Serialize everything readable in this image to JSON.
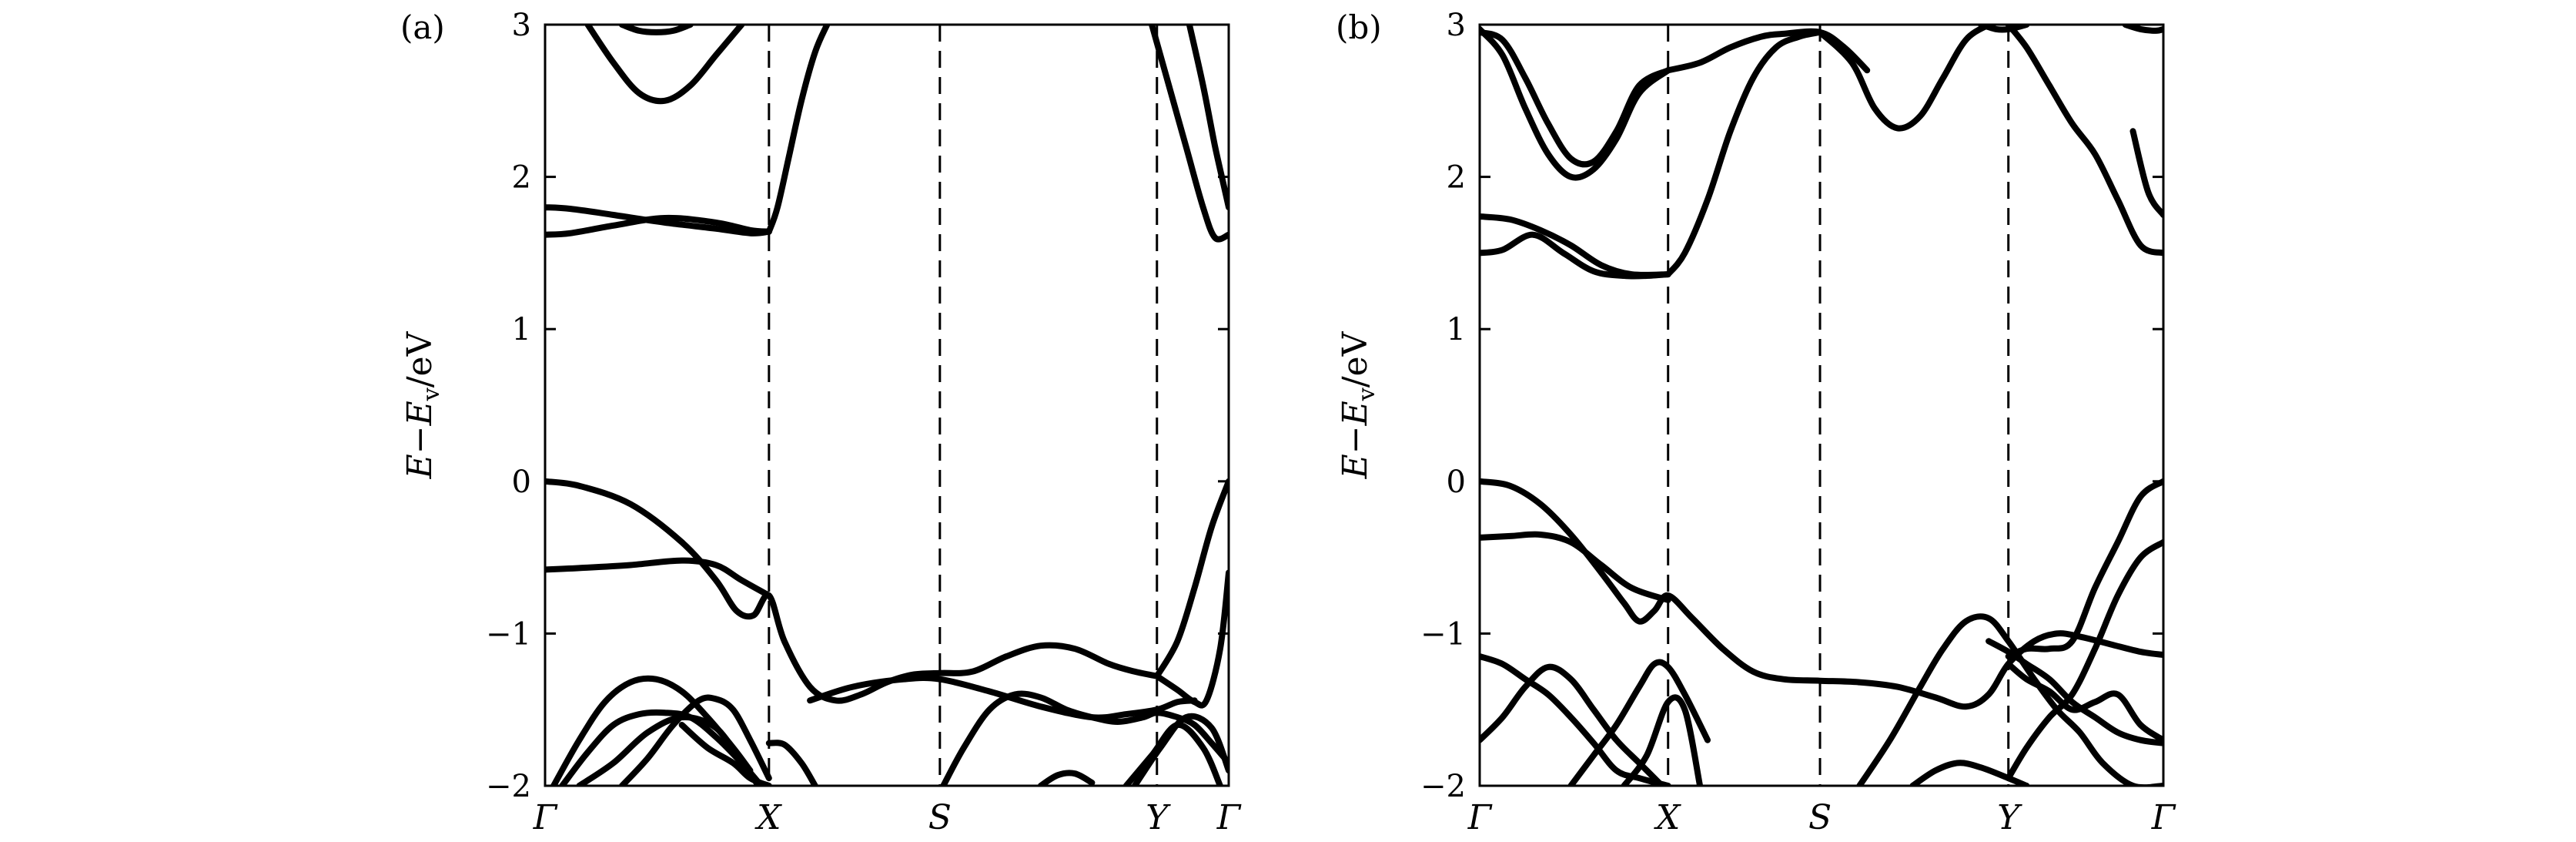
{
  "chart_data": [
    {
      "type": "line",
      "panel_label": "(a)",
      "ylabel": {
        "E": "E",
        "minus": "−",
        "Ev": "E",
        "sub": "v",
        "unit": "/eV"
      },
      "ylim": [
        -2,
        3
      ],
      "yticks": [
        -2,
        -1,
        0,
        1,
        2,
        3
      ],
      "ytick_labels": [
        "−2",
        "−1",
        "0",
        "1",
        "2",
        "3"
      ],
      "xlim": [
        0,
        4
      ],
      "kpoints": [
        {
          "label": "Γ",
          "x": 0
        },
        {
          "label": "X",
          "x": 1.31
        },
        {
          "label": "S",
          "x": 2.31
        },
        {
          "label": "Y",
          "x": 3.58
        },
        {
          "label": "Γ",
          "x": 4
        }
      ],
      "series": [
        {
          "x": [
            0.25,
            0.4,
            0.55,
            0.7,
            0.85,
            1.0,
            1.15
          ],
          "y": [
            3,
            2.75,
            2.55,
            2.5,
            2.6,
            2.8,
            3
          ]
        },
        {
          "x": [
            0.45,
            0.55,
            0.65,
            0.75,
            0.85
          ],
          "y": [
            3,
            2.96,
            2.95,
            2.96,
            3
          ]
        },
        {
          "x": [
            0,
            0.15,
            0.4,
            0.7,
            1.0,
            1.2,
            1.31
          ],
          "y": [
            1.8,
            1.79,
            1.75,
            1.7,
            1.66,
            1.63,
            1.64
          ]
        },
        {
          "x": [
            0,
            0.15,
            0.4,
            0.7,
            1.0,
            1.2,
            1.31
          ],
          "y": [
            1.62,
            1.63,
            1.68,
            1.73,
            1.7,
            1.65,
            1.64
          ]
        },
        {
          "x": [
            1.31,
            1.36,
            1.43,
            1.5,
            1.58,
            1.65
          ],
          "y": [
            1.64,
            1.8,
            2.15,
            2.5,
            2.82,
            3
          ]
        },
        {
          "x": [
            0,
            0.2,
            0.5,
            0.8,
            1.0,
            1.12,
            1.22,
            1.31,
            1.4,
            1.55,
            1.7,
            1.85,
            2.0,
            2.15,
            2.31,
            2.5,
            2.7,
            2.9,
            3.1,
            3.3,
            3.45,
            3.58
          ],
          "y": [
            0,
            -0.03,
            -0.15,
            -0.4,
            -0.65,
            -0.85,
            -0.88,
            -0.75,
            -1.05,
            -1.35,
            -1.44,
            -1.4,
            -1.32,
            -1.27,
            -1.26,
            -1.25,
            -1.15,
            -1.08,
            -1.1,
            -1.2,
            -1.25,
            -1.28
          ]
        },
        {
          "x": [
            3.58,
            3.7,
            3.8,
            3.87,
            3.95,
            4.0
          ],
          "y": [
            -1.28,
            -1.37,
            -1.45,
            -1.44,
            -1.1,
            -0.6
          ]
        },
        {
          "x": [
            0,
            0.2,
            0.5,
            0.8,
            1.0,
            1.15,
            1.31
          ],
          "y": [
            -0.58,
            -0.57,
            -0.55,
            -0.52,
            -0.55,
            -0.65,
            -0.75
          ]
        },
        {
          "x": [
            1.55,
            1.8,
            2.1,
            2.31,
            2.6,
            2.9,
            3.2,
            3.4,
            3.58,
            3.7,
            3.8
          ],
          "y": [
            -1.44,
            -1.35,
            -1.3,
            -1.3,
            -1.38,
            -1.48,
            -1.55,
            -1.53,
            -1.5,
            -1.45,
            -1.44
          ]
        },
        {
          "x": [
            3.58,
            3.7,
            3.8,
            3.9,
            4.0
          ],
          "y": [
            -1.28,
            -1.05,
            -0.7,
            -0.3,
            0
          ]
        },
        {
          "x": [
            0.05,
            0.2,
            0.35,
            0.5,
            0.65,
            0.8,
            0.95,
            1.1,
            1.2
          ],
          "y": [
            -2,
            -1.7,
            -1.45,
            -1.32,
            -1.3,
            -1.38,
            -1.55,
            -1.75,
            -1.9
          ]
        },
        {
          "x": [
            0.1,
            0.25,
            0.4,
            0.55,
            0.7,
            0.85,
            1.0,
            1.15,
            1.25
          ],
          "y": [
            -2,
            -1.78,
            -1.6,
            -1.53,
            -1.52,
            -1.55,
            -1.68,
            -1.85,
            -1.98
          ]
        },
        {
          "x": [
            0.2,
            0.4,
            0.6,
            0.8,
            1.0,
            1.15,
            1.25
          ],
          "y": [
            -2,
            -1.85,
            -1.65,
            -1.55,
            -1.62,
            -1.85,
            -2.0
          ]
        },
        {
          "x": [
            0.45,
            0.6,
            0.75,
            0.9,
            1.0,
            1.1,
            1.2,
            1.31
          ],
          "y": [
            -2,
            -1.82,
            -1.6,
            -1.44,
            -1.43,
            -1.5,
            -1.7,
            -1.95
          ]
        },
        {
          "x": [
            0.8,
            0.95,
            1.1,
            1.2,
            1.31
          ],
          "y": [
            -1.6,
            -1.75,
            -1.85,
            -1.95,
            -2.0
          ]
        },
        {
          "x": [
            1.31,
            1.4,
            1.5,
            1.58
          ],
          "y": [
            -1.72,
            -1.73,
            -1.85,
            -2.0
          ]
        },
        {
          "x": [
            2.33,
            2.45,
            2.6,
            2.75,
            2.9,
            3.05,
            3.2,
            3.35,
            3.5,
            3.58,
            3.7,
            3.8,
            3.9,
            4.0
          ],
          "y": [
            -2,
            -1.75,
            -1.5,
            -1.4,
            -1.42,
            -1.5,
            -1.55,
            -1.58,
            -1.55,
            -1.52,
            -1.55,
            -1.6,
            -1.72,
            -1.85
          ]
        },
        {
          "x": [
            2.9,
            3.0,
            3.1,
            3.2
          ],
          "y": [
            -2,
            -1.93,
            -1.92,
            -1.98
          ]
        },
        {
          "x": [
            3.4,
            3.55,
            3.7,
            3.85,
            3.95
          ],
          "y": [
            -2,
            -1.8,
            -1.6,
            -1.75,
            -2.0
          ]
        },
        {
          "x": [
            3.45,
            3.6,
            3.75,
            3.9,
            4.0
          ],
          "y": [
            -2,
            -1.75,
            -1.55,
            -1.62,
            -1.9
          ]
        },
        {
          "x": [
            3.55,
            3.65,
            3.75,
            3.85,
            3.92,
            4.0
          ],
          "y": [
            3,
            2.6,
            2.2,
            1.8,
            1.6,
            1.62
          ]
        },
        {
          "x": [
            3.77,
            3.85,
            3.92,
            3.97,
            4.0
          ],
          "y": [
            3,
            2.6,
            2.2,
            1.95,
            1.8
          ]
        }
      ]
    },
    {
      "type": "line",
      "panel_label": "(b)",
      "ylabel": {
        "E": "E",
        "minus": "−",
        "Ev": "E",
        "sub": "v",
        "unit": "/eV"
      },
      "ylim": [
        -2,
        3
      ],
      "yticks": [
        -2,
        -1,
        0,
        1,
        2,
        3
      ],
      "ytick_labels": [
        "−2",
        "−1",
        "0",
        "1",
        "2",
        "3"
      ],
      "xlim": [
        0,
        4.5
      ],
      "kpoints": [
        {
          "label": "Γ",
          "x": 0
        },
        {
          "label": "X",
          "x": 1.24
        },
        {
          "label": "S",
          "x": 2.24
        },
        {
          "label": "Y",
          "x": 3.48
        },
        {
          "label": "Γ",
          "x": 4.5
        }
      ],
      "series": [
        {
          "x": [
            0,
            0.15,
            0.3,
            0.45,
            0.6,
            0.75,
            0.9,
            1.05,
            1.24
          ],
          "y": [
            2.97,
            2.8,
            2.45,
            2.15,
            2.0,
            2.05,
            2.25,
            2.55,
            2.7
          ]
        },
        {
          "x": [
            0,
            0.15,
            0.3,
            0.45,
            0.6,
            0.75,
            0.9,
            1.05,
            1.24
          ],
          "y": [
            2.95,
            2.9,
            2.65,
            2.35,
            2.12,
            2.1,
            2.3,
            2.6,
            2.7
          ]
        },
        {
          "x": [
            1.24,
            1.45,
            1.65,
            1.85,
            2.0,
            2.24,
            2.4,
            2.55
          ],
          "y": [
            2.7,
            2.75,
            2.85,
            2.92,
            2.94,
            2.95,
            2.85,
            2.7
          ]
        },
        {
          "x": [
            1.24,
            1.35,
            1.5,
            1.65,
            1.8,
            1.95,
            2.1,
            2.24
          ],
          "y": [
            1.36,
            1.5,
            1.85,
            2.3,
            2.65,
            2.85,
            2.92,
            2.95
          ]
        },
        {
          "x": [
            2.24,
            2.45,
            2.6,
            2.75,
            2.9,
            3.05,
            3.2,
            3.35
          ],
          "y": [
            2.95,
            2.75,
            2.45,
            2.32,
            2.4,
            2.65,
            2.9,
            3.0
          ]
        },
        {
          "x": [
            3.48,
            3.6,
            3.75,
            3.9,
            4.05,
            4.2,
            4.35,
            4.5
          ],
          "y": [
            3,
            2.85,
            2.6,
            2.35,
            2.15,
            1.85,
            1.55,
            1.5
          ]
        },
        {
          "x": [
            3.3,
            3.4,
            3.48,
            3.6
          ],
          "y": [
            3,
            2.97,
            2.97,
            3
          ]
        },
        {
          "x": [
            4.25,
            4.35,
            4.45,
            4.5
          ],
          "y": [
            3,
            2.97,
            2.96,
            2.97
          ]
        },
        {
          "x": [
            4.3,
            4.4,
            4.5
          ],
          "y": [
            2.3,
            1.9,
            1.75
          ]
        },
        {
          "x": [
            0,
            0.2,
            0.4,
            0.6,
            0.8,
            1.0,
            1.24
          ],
          "y": [
            1.74,
            1.72,
            1.65,
            1.55,
            1.42,
            1.36,
            1.36
          ]
        },
        {
          "x": [
            0,
            0.15,
            0.35,
            0.55,
            0.75,
            0.95,
            1.1,
            1.24
          ],
          "y": [
            1.5,
            1.52,
            1.62,
            1.5,
            1.38,
            1.35,
            1.35,
            1.36
          ]
        },
        {
          "x": [
            0,
            0.2,
            0.4,
            0.6,
            0.8,
            0.95,
            1.05,
            1.15,
            1.24,
            1.4,
            1.6,
            1.8,
            2.0,
            2.24,
            2.5,
            2.75,
            3.0,
            3.2,
            3.35,
            3.48,
            3.65,
            3.8,
            3.95,
            4.15,
            4.35,
            4.5
          ],
          "y": [
            0,
            -0.03,
            -0.15,
            -0.35,
            -0.6,
            -0.8,
            -0.92,
            -0.85,
            -0.75,
            -0.9,
            -1.1,
            -1.25,
            -1.3,
            -1.31,
            -1.32,
            -1.35,
            -1.42,
            -1.48,
            -1.4,
            -1.2,
            -1.05,
            -1.0,
            -1.02,
            -1.07,
            -1.12,
            -1.14
          ]
        },
        {
          "x": [
            0,
            0.2,
            0.4,
            0.6,
            0.8,
            1.0,
            1.24
          ],
          "y": [
            -0.37,
            -0.36,
            -0.35,
            -0.4,
            -0.55,
            -0.7,
            -0.78
          ]
        },
        {
          "x": [
            2.5,
            2.7,
            2.9,
            3.05,
            3.2,
            3.35,
            3.48,
            3.65,
            3.8,
            3.95,
            4.1,
            4.3,
            4.5
          ],
          "y": [
            -2,
            -1.7,
            -1.35,
            -1.1,
            -0.92,
            -0.9,
            -1.05,
            -1.3,
            -1.5,
            -1.65,
            -1.85,
            -2.0,
            -2.0
          ]
        },
        {
          "x": [
            3.48,
            3.6,
            3.75,
            3.9,
            4.05,
            4.2,
            4.35,
            4.5
          ],
          "y": [
            -1.95,
            -1.75,
            -1.55,
            -1.4,
            -1.1,
            -0.75,
            -0.5,
            -0.4
          ]
        },
        {
          "x": [
            3.48,
            3.6,
            3.75,
            3.9,
            4.05,
            4.2,
            4.35,
            4.5
          ],
          "y": [
            -1.15,
            -1.1,
            -1.1,
            -1.05,
            -0.7,
            -0.4,
            -0.1,
            0
          ]
        },
        {
          "x": [
            3.48,
            3.6,
            3.75,
            3.9,
            4.05,
            4.2,
            4.35,
            4.5
          ],
          "y": [
            -1.2,
            -1.3,
            -1.38,
            -1.5,
            -1.45,
            -1.4,
            -1.6,
            -1.7
          ]
        },
        {
          "x": [
            3.35,
            3.48,
            3.6,
            3.75,
            3.9,
            4.05,
            4.2,
            4.35,
            4.5
          ],
          "y": [
            -1.05,
            -1.12,
            -1.2,
            -1.3,
            -1.45,
            -1.55,
            -1.65,
            -1.7,
            -1.72
          ]
        },
        {
          "x": [
            0,
            0.15,
            0.3,
            0.45,
            0.6,
            0.75,
            0.9,
            1.05,
            1.24
          ],
          "y": [
            -1.15,
            -1.2,
            -1.3,
            -1.4,
            -1.55,
            -1.72,
            -1.9,
            -1.95,
            -2.0
          ]
        },
        {
          "x": [
            0,
            0.15,
            0.3,
            0.45,
            0.6,
            0.75,
            0.9,
            1.05,
            1.2
          ],
          "y": [
            -1.7,
            -1.55,
            -1.35,
            -1.22,
            -1.3,
            -1.5,
            -1.7,
            -1.85,
            -2.0
          ]
        },
        {
          "x": [
            0.6,
            0.75,
            0.9,
            1.05,
            1.15,
            1.24,
            1.35,
            1.5
          ],
          "y": [
            -2,
            -1.8,
            -1.6,
            -1.35,
            -1.2,
            -1.22,
            -1.4,
            -1.7
          ]
        },
        {
          "x": [
            0.95,
            1.1,
            1.24,
            1.35,
            1.45
          ],
          "y": [
            -2,
            -1.8,
            -1.45,
            -1.5,
            -2.0
          ]
        },
        {
          "x": [
            2.85,
            3.0,
            3.15,
            3.3,
            3.48,
            3.6
          ],
          "y": [
            -2,
            -1.9,
            -1.85,
            -1.88,
            -1.95,
            -2.0
          ]
        }
      ]
    }
  ]
}
